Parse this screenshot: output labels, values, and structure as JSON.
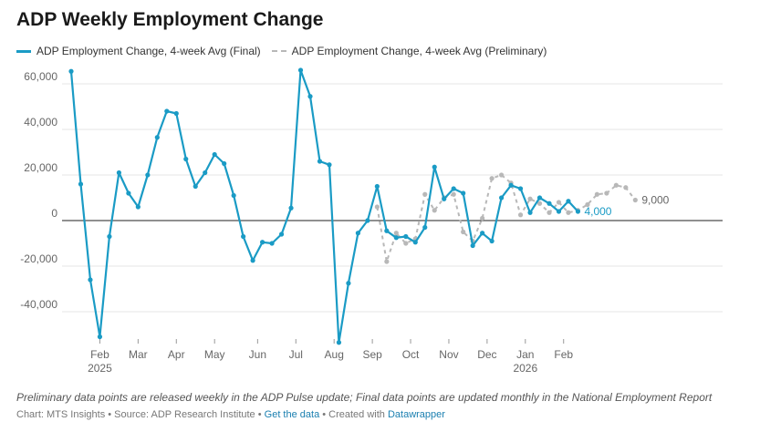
{
  "title": "ADP Weekly Employment Change",
  "legend": {
    "final": "ADP Employment Change, 4-week Avg (Final)",
    "preliminary": "ADP Employment Change, 4-week Avg (Preliminary)"
  },
  "note": "Preliminary data points are released weekly in the ADP Pulse update; Final data points are updated monthly in the National Employment Report",
  "credits": {
    "chart_by": "Chart: MTS Insights",
    "sep1": " • ",
    "source": "Source: ADP Research Institute",
    "sep2": " • ",
    "get_data": "Get the data",
    "sep3": " • ",
    "created_with": "Created with ",
    "tool": "Datawrapper"
  },
  "colors": {
    "final": "#1a9bc5",
    "preliminary": "#b8b8b8",
    "grid": "#e6e6e6",
    "zero": "#222222"
  },
  "chart_data": {
    "type": "line",
    "ylim": [
      -55000,
      70000
    ],
    "yticks": [
      60000,
      40000,
      20000,
      0,
      -20000,
      -40000
    ],
    "ytick_labels": [
      "60,000",
      "40,000",
      "20,000",
      "0",
      "-20,000",
      "-40,000"
    ],
    "month_ticks": [
      {
        "label": "Feb",
        "week": 3
      },
      {
        "label": "Mar",
        "week": 7
      },
      {
        "label": "Apr",
        "week": 11
      },
      {
        "label": "May",
        "week": 15
      },
      {
        "label": "Jun",
        "week": 19.5
      },
      {
        "label": "Jul",
        "week": 23.5
      },
      {
        "label": "Aug",
        "week": 27.5
      },
      {
        "label": "Sep",
        "week": 31.5
      },
      {
        "label": "Oct",
        "week": 35.5
      },
      {
        "label": "Nov",
        "week": 39.5
      },
      {
        "label": "Dec",
        "week": 43.5
      },
      {
        "label": "Jan",
        "week": 47.5
      },
      {
        "label": "Feb",
        "week": 51.5
      }
    ],
    "year_labels": [
      {
        "label": "2025",
        "week": 3
      },
      {
        "label": "2026",
        "week": 47.5
      }
    ],
    "series": [
      {
        "name": "ADP Employment Change, 4-week Avg (Final)",
        "start_week": 0,
        "values": [
          65500,
          16000,
          -26000,
          -51000,
          -7000,
          21000,
          12000,
          6000,
          20000,
          36500,
          48000,
          47000,
          27000,
          15000,
          21000,
          29000,
          25000,
          11000,
          -7000,
          -17500,
          -9500,
          -10000,
          -6000,
          5500,
          66000,
          54500,
          26000,
          24500,
          -53500,
          -27500,
          -5500,
          0,
          15000,
          -4500,
          -7500,
          -7000,
          -9500,
          -3000,
          23500,
          9500,
          14000,
          12000,
          -11000,
          -5500,
          -9000,
          10000,
          15500,
          14000,
          3500,
          10000,
          7500,
          4000,
          8500,
          4000
        ],
        "end_label": "4,000"
      },
      {
        "name": "ADP Employment Change, 4-week Avg (Preliminary)",
        "start_week": 32,
        "values": [
          6000,
          -18000,
          -5500,
          -10000,
          -8000,
          11500,
          4500,
          10000,
          11500,
          -5000,
          -9000,
          1000,
          18500,
          20000,
          16500,
          2500,
          9500,
          7500,
          3500,
          8000,
          3500,
          4500,
          7000,
          11500,
          12000,
          15500,
          14500,
          9000
        ],
        "end_label": "9,000"
      }
    ]
  }
}
